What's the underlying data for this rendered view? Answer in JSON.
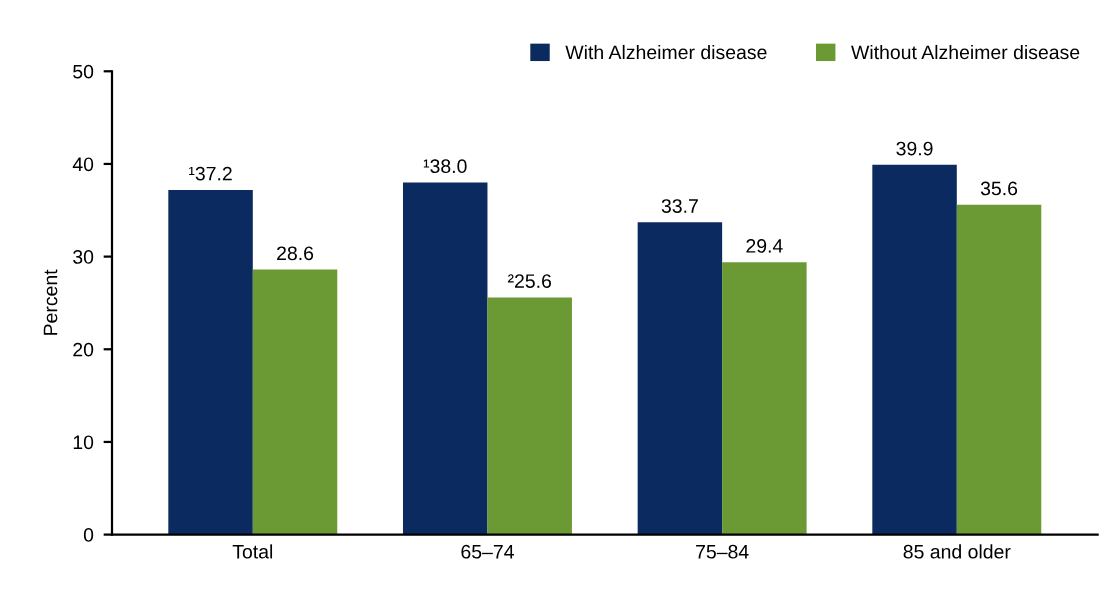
{
  "chart_data": {
    "type": "bar",
    "ylabel": "Percent",
    "categories": [
      "Total",
      "65–74",
      "75–84",
      "85 and older"
    ],
    "series": [
      {
        "name": "With Alzheimer disease",
        "color": "#0b2a5f",
        "values": [
          37.2,
          38.0,
          33.7,
          39.9
        ],
        "value_labels": [
          "¹37.2",
          "¹38.0",
          "33.7",
          "39.9"
        ]
      },
      {
        "name": "Without Alzheimer disease",
        "color": "#6b9a34",
        "values": [
          28.6,
          25.6,
          29.4,
          35.6
        ],
        "value_labels": [
          "28.6",
          "²25.6",
          "29.4",
          "35.6"
        ]
      }
    ],
    "ylim": [
      0,
      50
    ],
    "yticks": [
      0,
      10,
      20,
      30,
      40,
      50
    ],
    "grid": false,
    "legend": "top right"
  }
}
